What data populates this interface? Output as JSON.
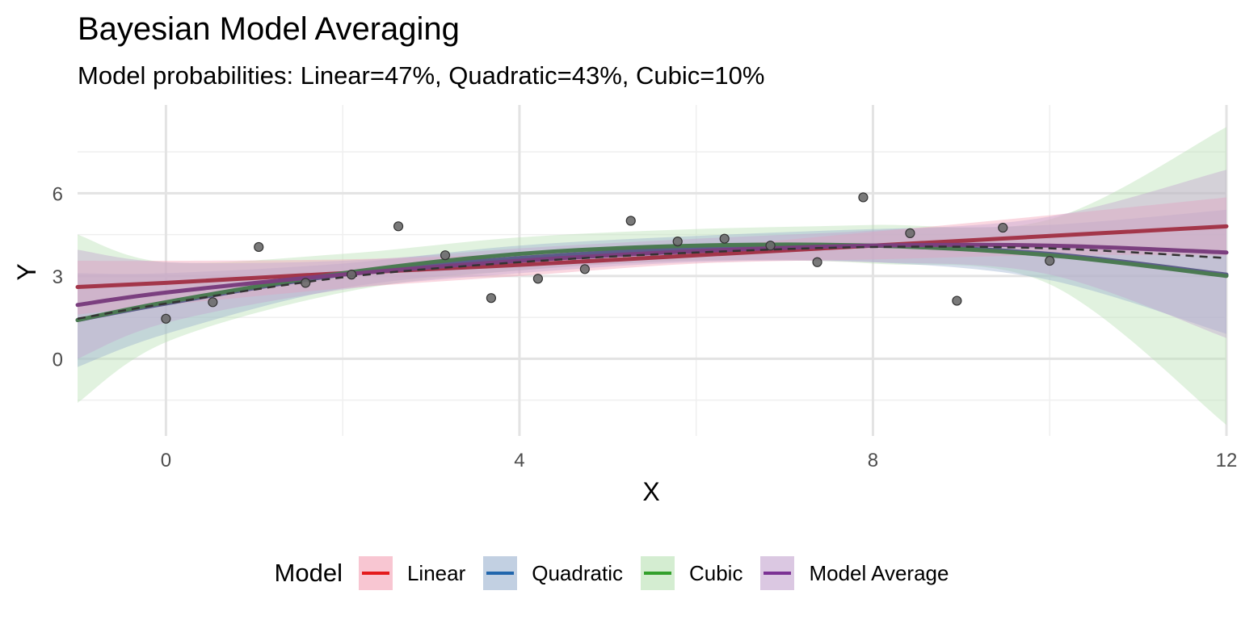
{
  "chart_data": {
    "type": "line",
    "title": "Bayesian Model Averaging",
    "subtitle": "Model probabilities: Linear=47%, Quadratic=43%, Cubic=10%",
    "xlabel": "X",
    "ylabel": "Y",
    "xlim": [
      -1,
      12
    ],
    "ylim": [
      -2.8,
      9.2
    ],
    "x_ticks": [
      0,
      4,
      8,
      12
    ],
    "y_ticks": [
      0,
      3,
      6
    ],
    "grid": true,
    "legend_position": "bottom",
    "legend_title": "Model",
    "points": [
      {
        "x": 0.0,
        "y": 1.45
      },
      {
        "x": 0.53,
        "y": 2.05
      },
      {
        "x": 1.05,
        "y": 4.05
      },
      {
        "x": 1.58,
        "y": 2.75
      },
      {
        "x": 2.1,
        "y": 3.05
      },
      {
        "x": 2.63,
        "y": 4.8
      },
      {
        "x": 3.16,
        "y": 3.75
      },
      {
        "x": 3.68,
        "y": 2.2
      },
      {
        "x": 4.21,
        "y": 2.9
      },
      {
        "x": 4.74,
        "y": 3.25
      },
      {
        "x": 5.26,
        "y": 5.0
      },
      {
        "x": 5.79,
        "y": 4.25
      },
      {
        "x": 6.32,
        "y": 4.35
      },
      {
        "x": 6.84,
        "y": 4.1
      },
      {
        "x": 7.37,
        "y": 3.5
      },
      {
        "x": 7.89,
        "y": 5.85
      },
      {
        "x": 8.42,
        "y": 4.55
      },
      {
        "x": 8.95,
        "y": 2.1
      },
      {
        "x": 9.47,
        "y": 4.75
      },
      {
        "x": 10.0,
        "y": 3.55
      }
    ],
    "series": [
      {
        "name": "Linear",
        "color": "#e41a1c",
        "line_color": "#a3364a",
        "band_color": "#f4a0b4",
        "x": [
          -1,
          0,
          2,
          4,
          6,
          8,
          10,
          12
        ],
        "y": [
          2.6,
          2.75,
          3.1,
          3.4,
          3.75,
          4.1,
          4.45,
          4.8
        ],
        "lower": [
          1.6,
          1.95,
          2.55,
          3.0,
          3.45,
          3.6,
          3.75,
          3.75
        ],
        "upper": [
          3.55,
          3.55,
          3.6,
          3.8,
          4.05,
          4.6,
          5.2,
          5.85
        ]
      },
      {
        "name": "Quadratic",
        "color": "#2166ac",
        "line_color": "#5c5c8a",
        "band_color": "#9ab0cf",
        "x": [
          -1,
          0,
          2,
          4,
          6,
          8,
          10,
          12
        ],
        "y": [
          1.4,
          2.0,
          3.05,
          3.65,
          4.0,
          4.1,
          3.8,
          3.05
        ],
        "lower": [
          -0.3,
          0.9,
          2.55,
          3.2,
          3.55,
          3.5,
          2.85,
          0.9
        ],
        "upper": [
          3.1,
          3.1,
          3.45,
          4.1,
          4.45,
          4.7,
          4.85,
          5.4
        ]
      },
      {
        "name": "Cubic",
        "color": "#33a02c",
        "line_color": "#4b7a52",
        "band_color": "#b7e1b2",
        "x": [
          -1,
          0,
          2,
          4,
          6,
          8,
          10,
          12
        ],
        "y": [
          1.4,
          2.05,
          3.1,
          3.8,
          4.1,
          4.1,
          3.75,
          3.0
        ],
        "lower": [
          -1.6,
          0.6,
          2.4,
          3.2,
          3.55,
          3.45,
          2.7,
          -2.4
        ],
        "upper": [
          4.5,
          3.5,
          3.8,
          4.4,
          4.7,
          4.85,
          5.05,
          8.4
        ]
      },
      {
        "name": "Model Average",
        "color": "#7b3294",
        "line_color": "#7b3f7f",
        "band_color": "#c3a4cf",
        "x": [
          -1,
          0,
          2,
          4,
          6,
          8,
          10,
          12
        ],
        "y": [
          1.95,
          2.4,
          3.05,
          3.55,
          3.9,
          4.1,
          4.1,
          3.85
        ],
        "lower": [
          0.0,
          1.3,
          2.5,
          3.1,
          3.5,
          3.5,
          3.05,
          0.75
        ],
        "upper": [
          3.95,
          3.5,
          3.55,
          4.0,
          4.35,
          4.65,
          5.15,
          6.85
        ]
      }
    ],
    "reference_curve": {
      "style": "dashed",
      "color": "#333333",
      "x": [
        -1,
        0,
        2,
        4,
        6,
        8,
        10,
        12
      ],
      "y": [
        1.45,
        2.0,
        2.95,
        3.5,
        3.85,
        4.05,
        4.0,
        3.65
      ]
    }
  }
}
